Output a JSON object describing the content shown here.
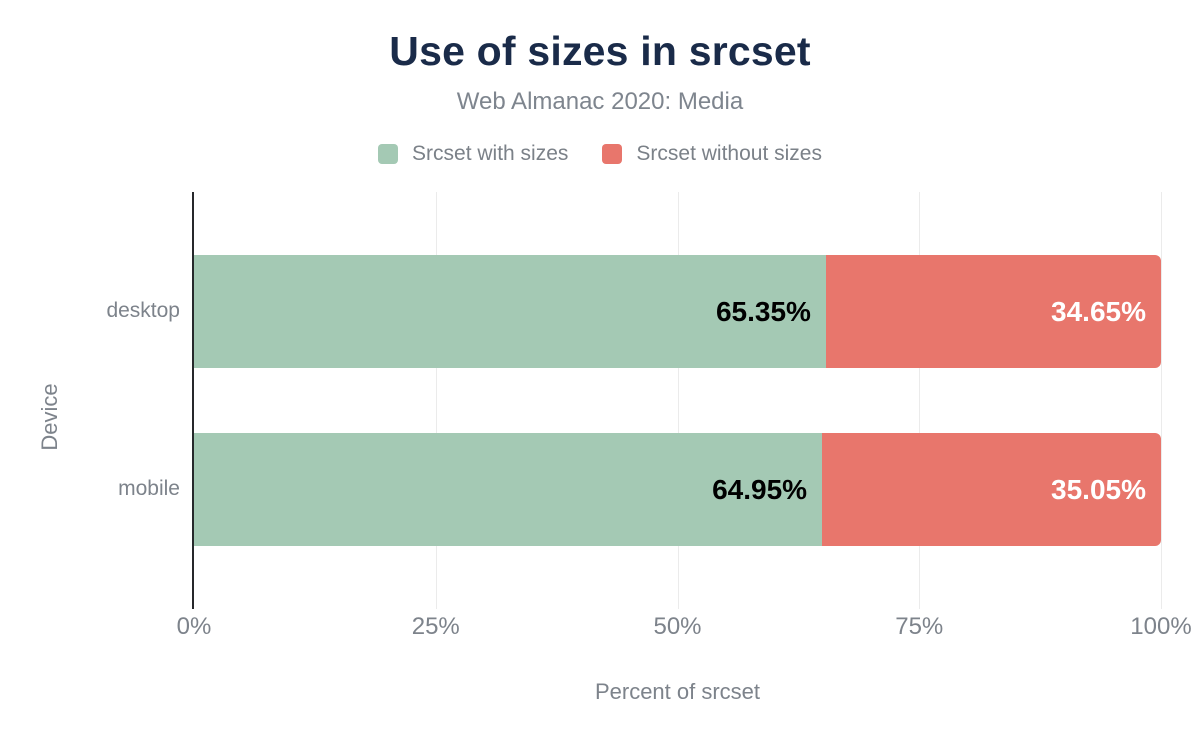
{
  "colors": {
    "background": "#ffffff",
    "title_navy": "#1a2b49",
    "text_gray": "#7d838b",
    "axis_line": "#26282b",
    "gridline": "#ebebeb",
    "series_green": "#a4c9b4",
    "series_red": "#e8766c",
    "label_on_green": "#000000",
    "label_on_red": "#ffffff"
  },
  "chart_data": {
    "type": "bar",
    "orientation": "horizontal",
    "stacked": true,
    "title": "Use of sizes in srcset",
    "subtitle": "Web Almanac 2020: Media",
    "xlabel": "Percent of srcset",
    "ylabel": "Device",
    "xlim": [
      0,
      100
    ],
    "xticks": [
      "0%",
      "25%",
      "50%",
      "75%",
      "100%"
    ],
    "grid": "vertical",
    "legend_position": "top",
    "categories": [
      "desktop",
      "mobile"
    ],
    "series": [
      {
        "name": "Srcset with sizes",
        "color": "#a4c9b4",
        "values": [
          65.35,
          64.95
        ],
        "labels": [
          "65.35%",
          "64.95%"
        ]
      },
      {
        "name": "Srcset without sizes",
        "color": "#e8766c",
        "values": [
          34.65,
          35.05
        ],
        "labels": [
          "34.65%",
          "35.05%"
        ]
      }
    ]
  }
}
